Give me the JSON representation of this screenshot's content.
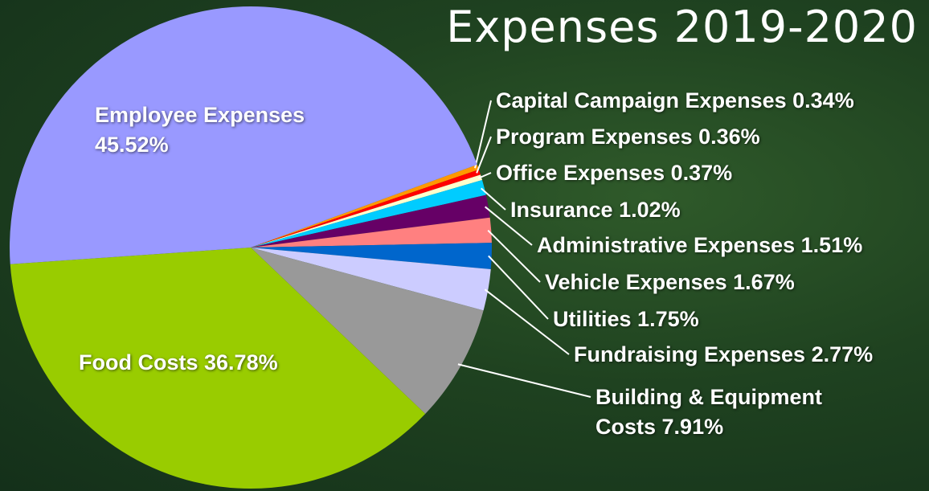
{
  "chart_data": {
    "type": "pie",
    "title": "Expenses 2019-2020",
    "categories": [
      "Capital Campaign Expenses",
      "Program Expenses",
      "Office Expenses",
      "Insurance",
      "Administrative Expenses",
      "Vehicle Expenses",
      "Utilities",
      "Fundraising Expenses",
      "Building & Equipment Costs",
      "Food Costs",
      "Employee Expenses"
    ],
    "values": [
      0.34,
      0.36,
      0.37,
      1.02,
      1.51,
      1.67,
      1.75,
      2.77,
      7.91,
      36.78,
      45.52
    ],
    "value_labels": [
      "0.34%",
      "0.36%",
      "0.37%",
      "1.02%",
      "1.51%",
      "1.67%",
      "1.75%",
      "2.77%",
      "7.91%",
      "36.78%",
      "45.52%"
    ],
    "colors": [
      "#ff9900",
      "#ff0000",
      "#ffffcc",
      "#00ccff",
      "#660066",
      "#ff8080",
      "#0066cc",
      "#ccccff",
      "#999999",
      "#99cc00",
      "#9999ff"
    ]
  }
}
